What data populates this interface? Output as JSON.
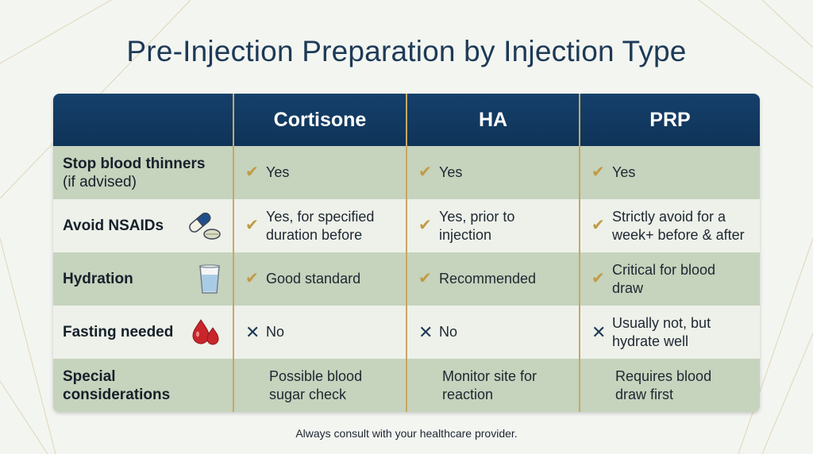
{
  "title": "Pre-Injection Preparation by Injection Type",
  "columns": [
    "Cortisone",
    "HA",
    "PRP"
  ],
  "rows": [
    {
      "label": "Stop blood thinners",
      "sublabel": "(if advised)",
      "icon": "",
      "cells": [
        {
          "mark": "check",
          "text": "Yes"
        },
        {
          "mark": "check",
          "text": "Yes"
        },
        {
          "mark": "check",
          "text": "Yes"
        }
      ]
    },
    {
      "label": "Avoid NSAIDs",
      "sublabel": "",
      "icon": "pills-icon",
      "cells": [
        {
          "mark": "check",
          "text": "Yes, for specified duration before"
        },
        {
          "mark": "check",
          "text": "Yes, prior to injection"
        },
        {
          "mark": "check",
          "text": "Strictly avoid for a week+ before & after"
        }
      ]
    },
    {
      "label": "Hydration",
      "sublabel": "",
      "icon": "water-glass-icon",
      "cells": [
        {
          "mark": "check",
          "text": "Good standard"
        },
        {
          "mark": "check",
          "text": "Recommended"
        },
        {
          "mark": "check",
          "text": "Critical for blood draw"
        }
      ]
    },
    {
      "label": "Fasting needed",
      "sublabel": "",
      "icon": "blood-drops-icon",
      "cells": [
        {
          "mark": "cross",
          "text": "No"
        },
        {
          "mark": "cross",
          "text": "No"
        },
        {
          "mark": "cross",
          "text": "Usually not, but hydrate well"
        }
      ]
    },
    {
      "label": "Special considerations",
      "sublabel": "",
      "icon": "",
      "cells": [
        {
          "mark": "none",
          "text": "Possible blood sugar check"
        },
        {
          "mark": "none",
          "text": "Monitor site for reaction"
        },
        {
          "mark": "none",
          "text": "Requires blood draw first"
        }
      ]
    }
  ],
  "footer": "Always consult with your healthcare provider.",
  "colors": {
    "header_bg": "#15406b",
    "row_green": "#c6d3bd",
    "row_light": "#eef1ea",
    "divider_gold": "#c7a866",
    "check_gold": "#c29a43",
    "cross_navy": "#1d3a56",
    "title_navy": "#1d3a56"
  }
}
